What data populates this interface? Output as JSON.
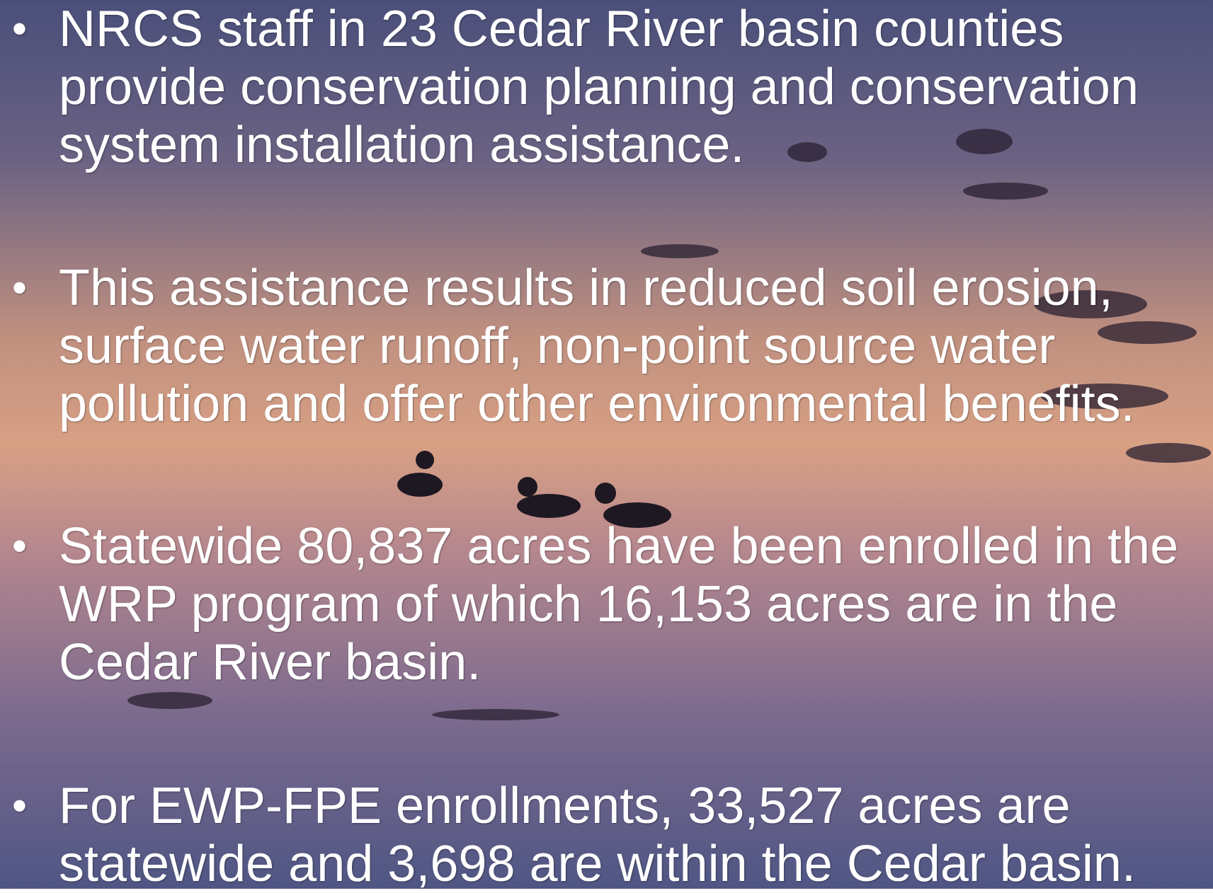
{
  "slide": {
    "bullets": [
      "NRCS staff in 23 Cedar River basin counties provide conservation planning and conservation system installation assistance.",
      "This assistance results in reduced soil erosion, surface water runoff, non-point source water pollution and offer other environmental benefits.",
      "Statewide 80,837 acres have been enrolled in the WRP program of which 16,153 acres are in the Cedar River basin.",
      "For EWP-FPE enrollments, 33,527 acres are statewide and 3,698 are within the Cedar basin."
    ]
  }
}
